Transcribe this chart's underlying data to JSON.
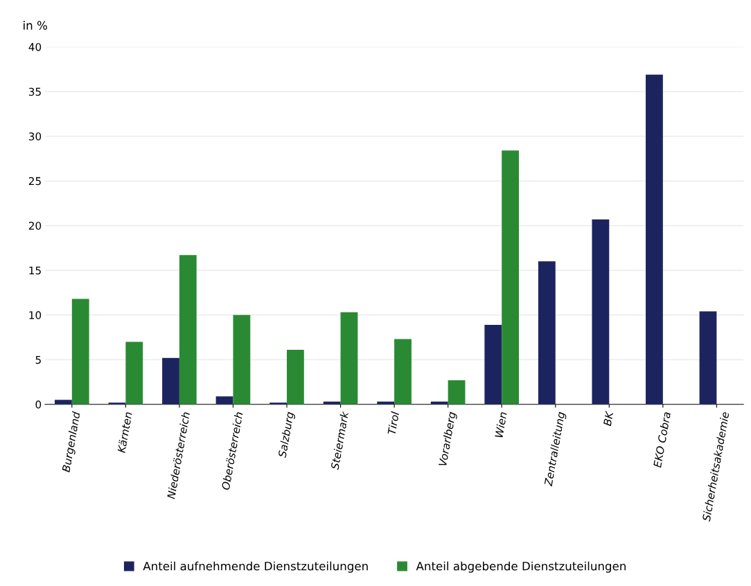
{
  "chart_data": {
    "type": "bar",
    "ylabel": "in %",
    "categories": [
      "Burgenland",
      "Kärnten",
      "Niederösterreich",
      "Oberösterreich",
      "Salzburg",
      "Steiermark",
      "Tirol",
      "Vorarlberg",
      "Wien",
      "Zentralleitung",
      "BK",
      "EKO Cobra",
      "Sicherheitsakademie"
    ],
    "series": [
      {
        "name": "Anteil aufnehmende Dienstzuteilungen",
        "color": "#1c2460",
        "values": [
          0.5,
          0.2,
          5.2,
          0.9,
          0.2,
          0.3,
          0.3,
          0.3,
          8.9,
          16.0,
          20.7,
          36.9,
          10.4
        ]
      },
      {
        "name": "Anteil abgebende Dienstzuteilungen",
        "color": "#2a8a34",
        "values": [
          11.8,
          7.0,
          16.7,
          10.0,
          6.1,
          10.3,
          7.3,
          2.7,
          28.4,
          null,
          null,
          null,
          null
        ]
      }
    ],
    "ylim": [
      0,
      40
    ],
    "yticks": [
      0,
      5,
      10,
      15,
      20,
      25,
      30,
      35,
      40
    ],
    "grid": "y",
    "legend": "bottom"
  }
}
